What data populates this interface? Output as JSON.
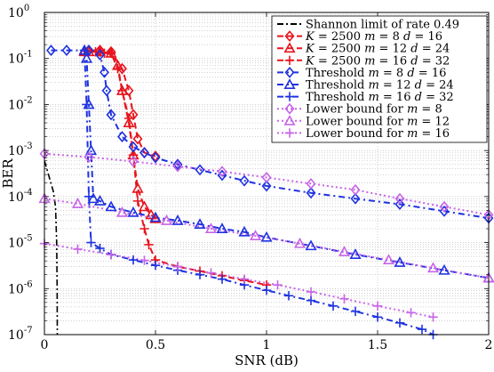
{
  "chart_data": {
    "type": "line",
    "title": "",
    "xlabel": "SNR (dB)",
    "ylabel": "BER",
    "xlim": [
      0,
      2
    ],
    "ylim": [
      1e-07,
      1
    ],
    "yscale": "log",
    "grid": true,
    "legend_position": "top-right",
    "x_ticks": [
      0,
      0.5,
      1,
      1.5,
      2
    ],
    "x_tick_labels": [
      "0",
      "0.5",
      "1",
      "1.5",
      "2"
    ],
    "y_ticks": [
      1e-07,
      1e-06,
      1e-05,
      0.0001,
      0.001,
      0.01,
      0.1,
      1
    ],
    "y_tick_labels": [
      {
        "base": "10",
        "exp": "-7"
      },
      {
        "base": "10",
        "exp": "-6"
      },
      {
        "base": "10",
        "exp": "-5"
      },
      {
        "base": "10",
        "exp": "-4"
      },
      {
        "base": "10",
        "exp": "-3"
      },
      {
        "base": "10",
        "exp": "-2"
      },
      {
        "base": "10",
        "exp": "-1"
      },
      {
        "base": "10",
        "exp": "0"
      }
    ],
    "series": [
      {
        "name": "Shannon limit of rate 0.49",
        "legend_parts": [
          {
            "t": "Shannon limit of rate 0.49",
            "it": false
          }
        ],
        "color": "#000000",
        "dash": "7 3 2 3",
        "marker": "none",
        "x": [
          0.0,
          0.02,
          0.04,
          0.05,
          0.055,
          0.057,
          0.058
        ],
        "y": [
          0.0006,
          0.00028,
          0.00013,
          6e-05,
          1e-05,
          1e-06,
          1e-07
        ]
      },
      {
        "name": "K = 2500 m = 8 d = 16",
        "legend_parts": [
          {
            "t": "K",
            "it": true
          },
          {
            "t": " = 2500 ",
            "it": false
          },
          {
            "t": "m",
            "it": true
          },
          {
            "t": " = 8 ",
            "it": false
          },
          {
            "t": "d",
            "it": true
          },
          {
            "t": " = 16",
            "it": false
          }
        ],
        "color": "#e8141d",
        "dash": "7 4",
        "marker": "diamond",
        "x": [
          0.2,
          0.25,
          0.3,
          0.35,
          0.38,
          0.4,
          0.42,
          0.45,
          0.5
        ],
        "y": [
          0.15,
          0.15,
          0.14,
          0.06,
          0.02,
          0.006,
          0.0018,
          0.0009,
          0.00075
        ]
      },
      {
        "name": "K = 2500 m = 12 d = 24",
        "legend_parts": [
          {
            "t": "K",
            "it": true
          },
          {
            "t": " = 2500 ",
            "it": false
          },
          {
            "t": "m",
            "it": true
          },
          {
            "t": " = 12 ",
            "it": false
          },
          {
            "t": "d",
            "it": true
          },
          {
            "t": " = 24",
            "it": false
          }
        ],
        "color": "#e8141d",
        "dash": "7 4",
        "marker": "triangle",
        "x": [
          0.18,
          0.2,
          0.25,
          0.3,
          0.33,
          0.35,
          0.38,
          0.4,
          0.42,
          0.45,
          0.48,
          0.5
        ],
        "y": [
          0.14,
          0.14,
          0.14,
          0.13,
          0.07,
          0.02,
          0.004,
          0.0008,
          0.00015,
          6e-05,
          4e-05,
          3.3e-05
        ]
      },
      {
        "name": "K = 2500 m = 16 d = 32",
        "legend_parts": [
          {
            "t": "K",
            "it": true
          },
          {
            "t": " = 2500 ",
            "it": false
          },
          {
            "t": "m",
            "it": true
          },
          {
            "t": " = 16 ",
            "it": false
          },
          {
            "t": "d",
            "it": true
          },
          {
            "t": " = 32",
            "it": false
          }
        ],
        "color": "#e8141d",
        "dash": "7 4",
        "marker": "plus",
        "x": [
          0.23,
          0.25,
          0.27,
          0.3,
          0.33,
          0.35,
          0.38,
          0.4,
          0.42,
          0.45,
          0.47,
          0.5,
          0.6,
          0.7,
          0.8,
          0.9,
          1.0
        ],
        "y": [
          0.14,
          0.14,
          0.13,
          0.13,
          0.06,
          0.02,
          0.005,
          0.0008,
          8e-05,
          2e-05,
          9e-06,
          4.2e-06,
          3e-06,
          2.4e-06,
          1.9e-06,
          1.5e-06,
          1.2e-06
        ]
      },
      {
        "name": "Threshold m = 8 d = 16",
        "legend_parts": [
          {
            "t": "Threshold ",
            "it": false
          },
          {
            "t": "m",
            "it": true
          },
          {
            "t": " = 8 ",
            "it": false
          },
          {
            "t": "d",
            "it": true
          },
          {
            "t": " = 16",
            "it": false
          }
        ],
        "color": "#1f32e0",
        "dash": "7 4 2 4",
        "marker": "diamond",
        "x": [
          0.03,
          0.1,
          0.2,
          0.25,
          0.27,
          0.28,
          0.3,
          0.35,
          0.4,
          0.45,
          0.5,
          0.6,
          0.7,
          0.8,
          0.9,
          1.0,
          1.2,
          1.4,
          1.6,
          1.8,
          2.0
        ],
        "y": [
          0.15,
          0.15,
          0.15,
          0.12,
          0.05,
          0.02,
          0.006,
          0.002,
          0.0012,
          0.0009,
          0.0007,
          0.0005,
          0.00038,
          0.00029,
          0.00022,
          0.00017,
          0.00012,
          9e-05,
          6.8e-05,
          4.8e-05,
          3.4e-05
        ]
      },
      {
        "name": "Threshold m = 12 d = 24",
        "legend_parts": [
          {
            "t": "Threshold ",
            "it": false
          },
          {
            "t": "m",
            "it": true
          },
          {
            "t": " = 12 ",
            "it": false
          },
          {
            "t": "d",
            "it": true
          },
          {
            "t": " = 24",
            "it": false
          }
        ],
        "color": "#1f32e0",
        "dash": "7 4 2 4",
        "marker": "triangle",
        "x": [
          0.18,
          0.19,
          0.2,
          0.21,
          0.22,
          0.25,
          0.3,
          0.4,
          0.5,
          0.6,
          0.7,
          0.8,
          0.9,
          1.0,
          1.2,
          1.4,
          1.6,
          1.8,
          2.0
        ],
        "y": [
          0.15,
          0.1,
          0.01,
          0.001,
          9e-05,
          8e-05,
          6e-05,
          4.5e-05,
          3.5e-05,
          3e-05,
          2.5e-05,
          2e-05,
          1.7e-05,
          1.3e-05,
          8.5e-06,
          5.5e-06,
          3.7e-06,
          2.5e-06,
          1.7e-06
        ]
      },
      {
        "name": "Threshold m = 16 d = 32",
        "legend_parts": [
          {
            "t": "Threshold ",
            "it": false
          },
          {
            "t": "m",
            "it": true
          },
          {
            "t": " = 16 ",
            "it": false
          },
          {
            "t": "d",
            "it": true
          },
          {
            "t": " = 32",
            "it": false
          }
        ],
        "color": "#1f32e0",
        "dash": "7 4 2 4",
        "marker": "plus",
        "x": [
          0.18,
          0.19,
          0.2,
          0.21,
          0.25,
          0.3,
          0.4,
          0.5,
          0.6,
          0.7,
          0.8,
          0.9,
          1.0,
          1.1,
          1.2,
          1.3,
          1.4,
          1.5,
          1.6,
          1.7,
          1.75
        ],
        "y": [
          0.15,
          0.01,
          0.0001,
          1e-05,
          7.5e-06,
          5.5e-06,
          4.2e-06,
          3.2e-06,
          2.5e-06,
          2e-06,
          1.6e-06,
          1.2e-06,
          9.2e-07,
          7e-07,
          5.5e-07,
          4.2e-07,
          3.2e-07,
          2.4e-07,
          1.8e-07,
          1.3e-07,
          1e-07
        ]
      },
      {
        "name": "Lower bound for m = 8",
        "legend_parts": [
          {
            "t": "Lower bound for ",
            "it": false
          },
          {
            "t": "m",
            "it": true
          },
          {
            "t": " = 8",
            "it": false
          }
        ],
        "color": "#c765e6",
        "dash": "2 3",
        "marker": "diamond",
        "x": [
          0.0,
          0.2,
          0.4,
          0.6,
          0.8,
          1.0,
          1.2,
          1.4,
          1.6,
          1.8,
          2.0
        ],
        "y": [
          0.00085,
          0.00072,
          0.00058,
          0.00045,
          0.00035,
          0.00026,
          0.00019,
          0.00014,
          9e-05,
          6e-05,
          4e-05
        ]
      },
      {
        "name": "Lower bound for m = 12",
        "legend_parts": [
          {
            "t": "Lower bound for ",
            "it": false
          },
          {
            "t": "m",
            "it": true
          },
          {
            "t": " = 12",
            "it": false
          }
        ],
        "color": "#c765e6",
        "dash": "2 3",
        "marker": "triangle",
        "x": [
          0.0,
          0.15,
          0.35,
          0.55,
          0.75,
          0.95,
          1.15,
          1.35,
          1.55,
          1.75,
          2.0
        ],
        "y": [
          9e-05,
          7e-05,
          4.5e-05,
          3e-05,
          2e-05,
          1.4e-05,
          9.5e-06,
          6.3e-06,
          4.2e-06,
          2.8e-06,
          1.7e-06
        ]
      },
      {
        "name": "Lower bound for m = 16",
        "legend_parts": [
          {
            "t": "Lower bound for ",
            "it": false
          },
          {
            "t": "m",
            "it": true
          },
          {
            "t": " = 16",
            "it": false
          }
        ],
        "color": "#c765e6",
        "dash": "2 3",
        "marker": "plus",
        "x": [
          0.0,
          0.15,
          0.3,
          0.45,
          0.6,
          0.75,
          0.9,
          1.05,
          1.2,
          1.35,
          1.5,
          1.65,
          1.75
        ],
        "y": [
          9.5e-06,
          7.2e-06,
          5.5e-06,
          4.1e-06,
          3e-06,
          2.2e-06,
          1.6e-06,
          1.2e-06,
          8.5e-07,
          6e-07,
          4.2e-07,
          3e-07,
          2.4e-07
        ]
      }
    ]
  }
}
